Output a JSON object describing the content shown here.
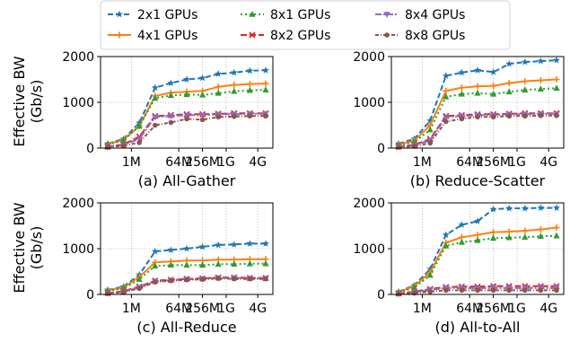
{
  "figure": {
    "ylabel_line1": "Effective BW",
    "ylabel_line2": "(Gb/s)"
  },
  "legend": [
    {
      "name": "2x1 GPUs",
      "color": "#1f77b4",
      "marker": "star",
      "dash": "6,3"
    },
    {
      "name": "4x1 GPUs",
      "color": "#ff7f0e",
      "marker": "plus",
      "dash": ""
    },
    {
      "name": "8x1 GPUs",
      "color": "#2ca02c",
      "marker": "triangle-up",
      "dash": "2,3"
    },
    {
      "name": "8x2 GPUs",
      "color": "#d62728",
      "marker": "x",
      "dash": "7,3"
    },
    {
      "name": "8x4 GPUs",
      "color": "#9467bd",
      "marker": "triangle-down",
      "dash": "7,2,2,2"
    },
    {
      "name": "8x8 GPUs",
      "color": "#8c564b",
      "marker": "circle",
      "dash": "4,2,1,2"
    }
  ],
  "chart_data": [
    {
      "type": "line",
      "title": "(a) All-Gather",
      "x": [
        0,
        1,
        2,
        3,
        4,
        5,
        6,
        7,
        8,
        9,
        10
      ],
      "x_tick_labels": [
        {
          "at": 1.5,
          "label": "1M"
        },
        {
          "at": 4.5,
          "label": "64M"
        },
        {
          "at": 6.0,
          "label": "256M"
        },
        {
          "at": 7.5,
          "label": "1G"
        },
        {
          "at": 9.5,
          "label": "4G"
        }
      ],
      "ylim": [
        0,
        2000
      ],
      "y_ticks": [
        "0",
        "1000",
        "2000"
      ],
      "series": [
        {
          "name": "2x1 GPUs",
          "values": [
            100,
            200,
            550,
            1320,
            1420,
            1500,
            1530,
            1620,
            1650,
            1690,
            1700
          ]
        },
        {
          "name": "4x1 GPUs",
          "values": [
            90,
            180,
            480,
            1140,
            1210,
            1230,
            1250,
            1340,
            1380,
            1400,
            1410
          ]
        },
        {
          "name": "8x1 GPUs",
          "values": [
            80,
            170,
            480,
            1090,
            1150,
            1170,
            1160,
            1200,
            1240,
            1260,
            1270
          ]
        },
        {
          "name": "8x2 GPUs",
          "values": [
            30,
            80,
            250,
            700,
            720,
            740,
            740,
            750,
            760,
            760,
            760
          ]
        },
        {
          "name": "8x4 GPUs",
          "values": [
            25,
            70,
            200,
            680,
            700,
            720,
            720,
            740,
            740,
            750,
            750
          ]
        },
        {
          "name": "8x8 GPUs",
          "values": [
            20,
            50,
            120,
            500,
            560,
            640,
            620,
            680,
            690,
            700,
            700
          ]
        }
      ]
    },
    {
      "type": "line",
      "title": "(b) Reduce-Scatter",
      "x": [
        0,
        1,
        2,
        3,
        4,
        5,
        6,
        7,
        8,
        9,
        10
      ],
      "x_tick_labels": [
        {
          "at": 1.5,
          "label": "1M"
        },
        {
          "at": 4.5,
          "label": "64M"
        },
        {
          "at": 6.0,
          "label": "256M"
        },
        {
          "at": 7.5,
          "label": "1G"
        },
        {
          "at": 9.5,
          "label": "4G"
        }
      ],
      "ylim": [
        0,
        2000
      ],
      "y_ticks": [
        "0",
        "1000",
        "2000"
      ],
      "series": [
        {
          "name": "2x1 GPUs",
          "values": [
            100,
            200,
            600,
            1580,
            1650,
            1700,
            1660,
            1840,
            1880,
            1900,
            1920
          ]
        },
        {
          "name": "4x1 GPUs",
          "values": [
            80,
            160,
            500,
            1250,
            1320,
            1350,
            1360,
            1420,
            1460,
            1480,
            1500
          ]
        },
        {
          "name": "8x1 GPUs",
          "values": [
            60,
            130,
            400,
            1120,
            1180,
            1200,
            1180,
            1230,
            1270,
            1290,
            1310
          ]
        },
        {
          "name": "8x2 GPUs",
          "values": [
            30,
            70,
            200,
            700,
            720,
            740,
            740,
            750,
            760,
            760,
            760
          ]
        },
        {
          "name": "8x4 GPUs",
          "values": [
            25,
            60,
            170,
            680,
            700,
            720,
            720,
            740,
            740,
            750,
            750
          ]
        },
        {
          "name": "8x8 GPUs",
          "values": [
            20,
            40,
            110,
            580,
            640,
            680,
            680,
            700,
            700,
            710,
            710
          ]
        }
      ]
    },
    {
      "type": "line",
      "title": "(c) All-Reduce",
      "x": [
        0,
        1,
        2,
        3,
        4,
        5,
        6,
        7,
        8,
        9,
        10
      ],
      "x_tick_labels": [
        {
          "at": 1.5,
          "label": "1M"
        },
        {
          "at": 4.5,
          "label": "64M"
        },
        {
          "at": 6.0,
          "label": "256M"
        },
        {
          "at": 7.5,
          "label": "1G"
        },
        {
          "at": 9.5,
          "label": "4G"
        }
      ],
      "ylim": [
        0,
        2000
      ],
      "y_ticks": [
        "0",
        "1000",
        "2000"
      ],
      "series": [
        {
          "name": "2x1 GPUs",
          "values": [
            100,
            170,
            430,
            940,
            970,
            1000,
            1040,
            1080,
            1090,
            1110,
            1110
          ]
        },
        {
          "name": "4x1 GPUs",
          "values": [
            90,
            150,
            380,
            700,
            720,
            740,
            740,
            760,
            760,
            770,
            770
          ]
        },
        {
          "name": "8x1 GPUs",
          "values": [
            80,
            130,
            330,
            620,
            640,
            640,
            640,
            660,
            660,
            670,
            670
          ]
        },
        {
          "name": "8x2 GPUs",
          "values": [
            30,
            70,
            170,
            300,
            320,
            340,
            350,
            370,
            370,
            360,
            360
          ]
        },
        {
          "name": "8x4 GPUs",
          "values": [
            25,
            60,
            150,
            290,
            310,
            330,
            340,
            360,
            360,
            350,
            350
          ]
        },
        {
          "name": "8x8 GPUs",
          "values": [
            20,
            50,
            130,
            270,
            300,
            320,
            330,
            350,
            340,
            340,
            340
          ]
        }
      ]
    },
    {
      "type": "line",
      "title": "(d) All-to-All",
      "x": [
        0,
        1,
        2,
        3,
        4,
        5,
        6,
        7,
        8,
        9,
        10
      ],
      "x_tick_labels": [
        {
          "at": 1.5,
          "label": "1M"
        },
        {
          "at": 4.5,
          "label": "64M"
        },
        {
          "at": 6.0,
          "label": "256M"
        },
        {
          "at": 7.5,
          "label": "1G"
        },
        {
          "at": 9.5,
          "label": "4G"
        }
      ],
      "ylim": [
        0,
        2000
      ],
      "y_ticks": [
        "0",
        "1000",
        "2000"
      ],
      "series": [
        {
          "name": "2x1 GPUs",
          "values": [
            60,
            200,
            550,
            1300,
            1520,
            1600,
            1860,
            1880,
            1880,
            1890,
            1890
          ]
        },
        {
          "name": "4x1 GPUs",
          "values": [
            50,
            180,
            480,
            1130,
            1250,
            1300,
            1360,
            1370,
            1390,
            1420,
            1460
          ]
        },
        {
          "name": "8x1 GPUs",
          "values": [
            40,
            150,
            420,
            1060,
            1140,
            1180,
            1230,
            1240,
            1250,
            1270,
            1280
          ]
        },
        {
          "name": "8x2 GPUs",
          "values": [
            20,
            60,
            120,
            160,
            170,
            170,
            180,
            180,
            180,
            180,
            180
          ]
        },
        {
          "name": "8x4 GPUs",
          "values": [
            15,
            50,
            100,
            140,
            140,
            140,
            140,
            140,
            140,
            140,
            140
          ]
        },
        {
          "name": "8x8 GPUs",
          "values": [
            10,
            30,
            60,
            90,
            90,
            90,
            90,
            90,
            90,
            90,
            90
          ]
        }
      ]
    }
  ]
}
